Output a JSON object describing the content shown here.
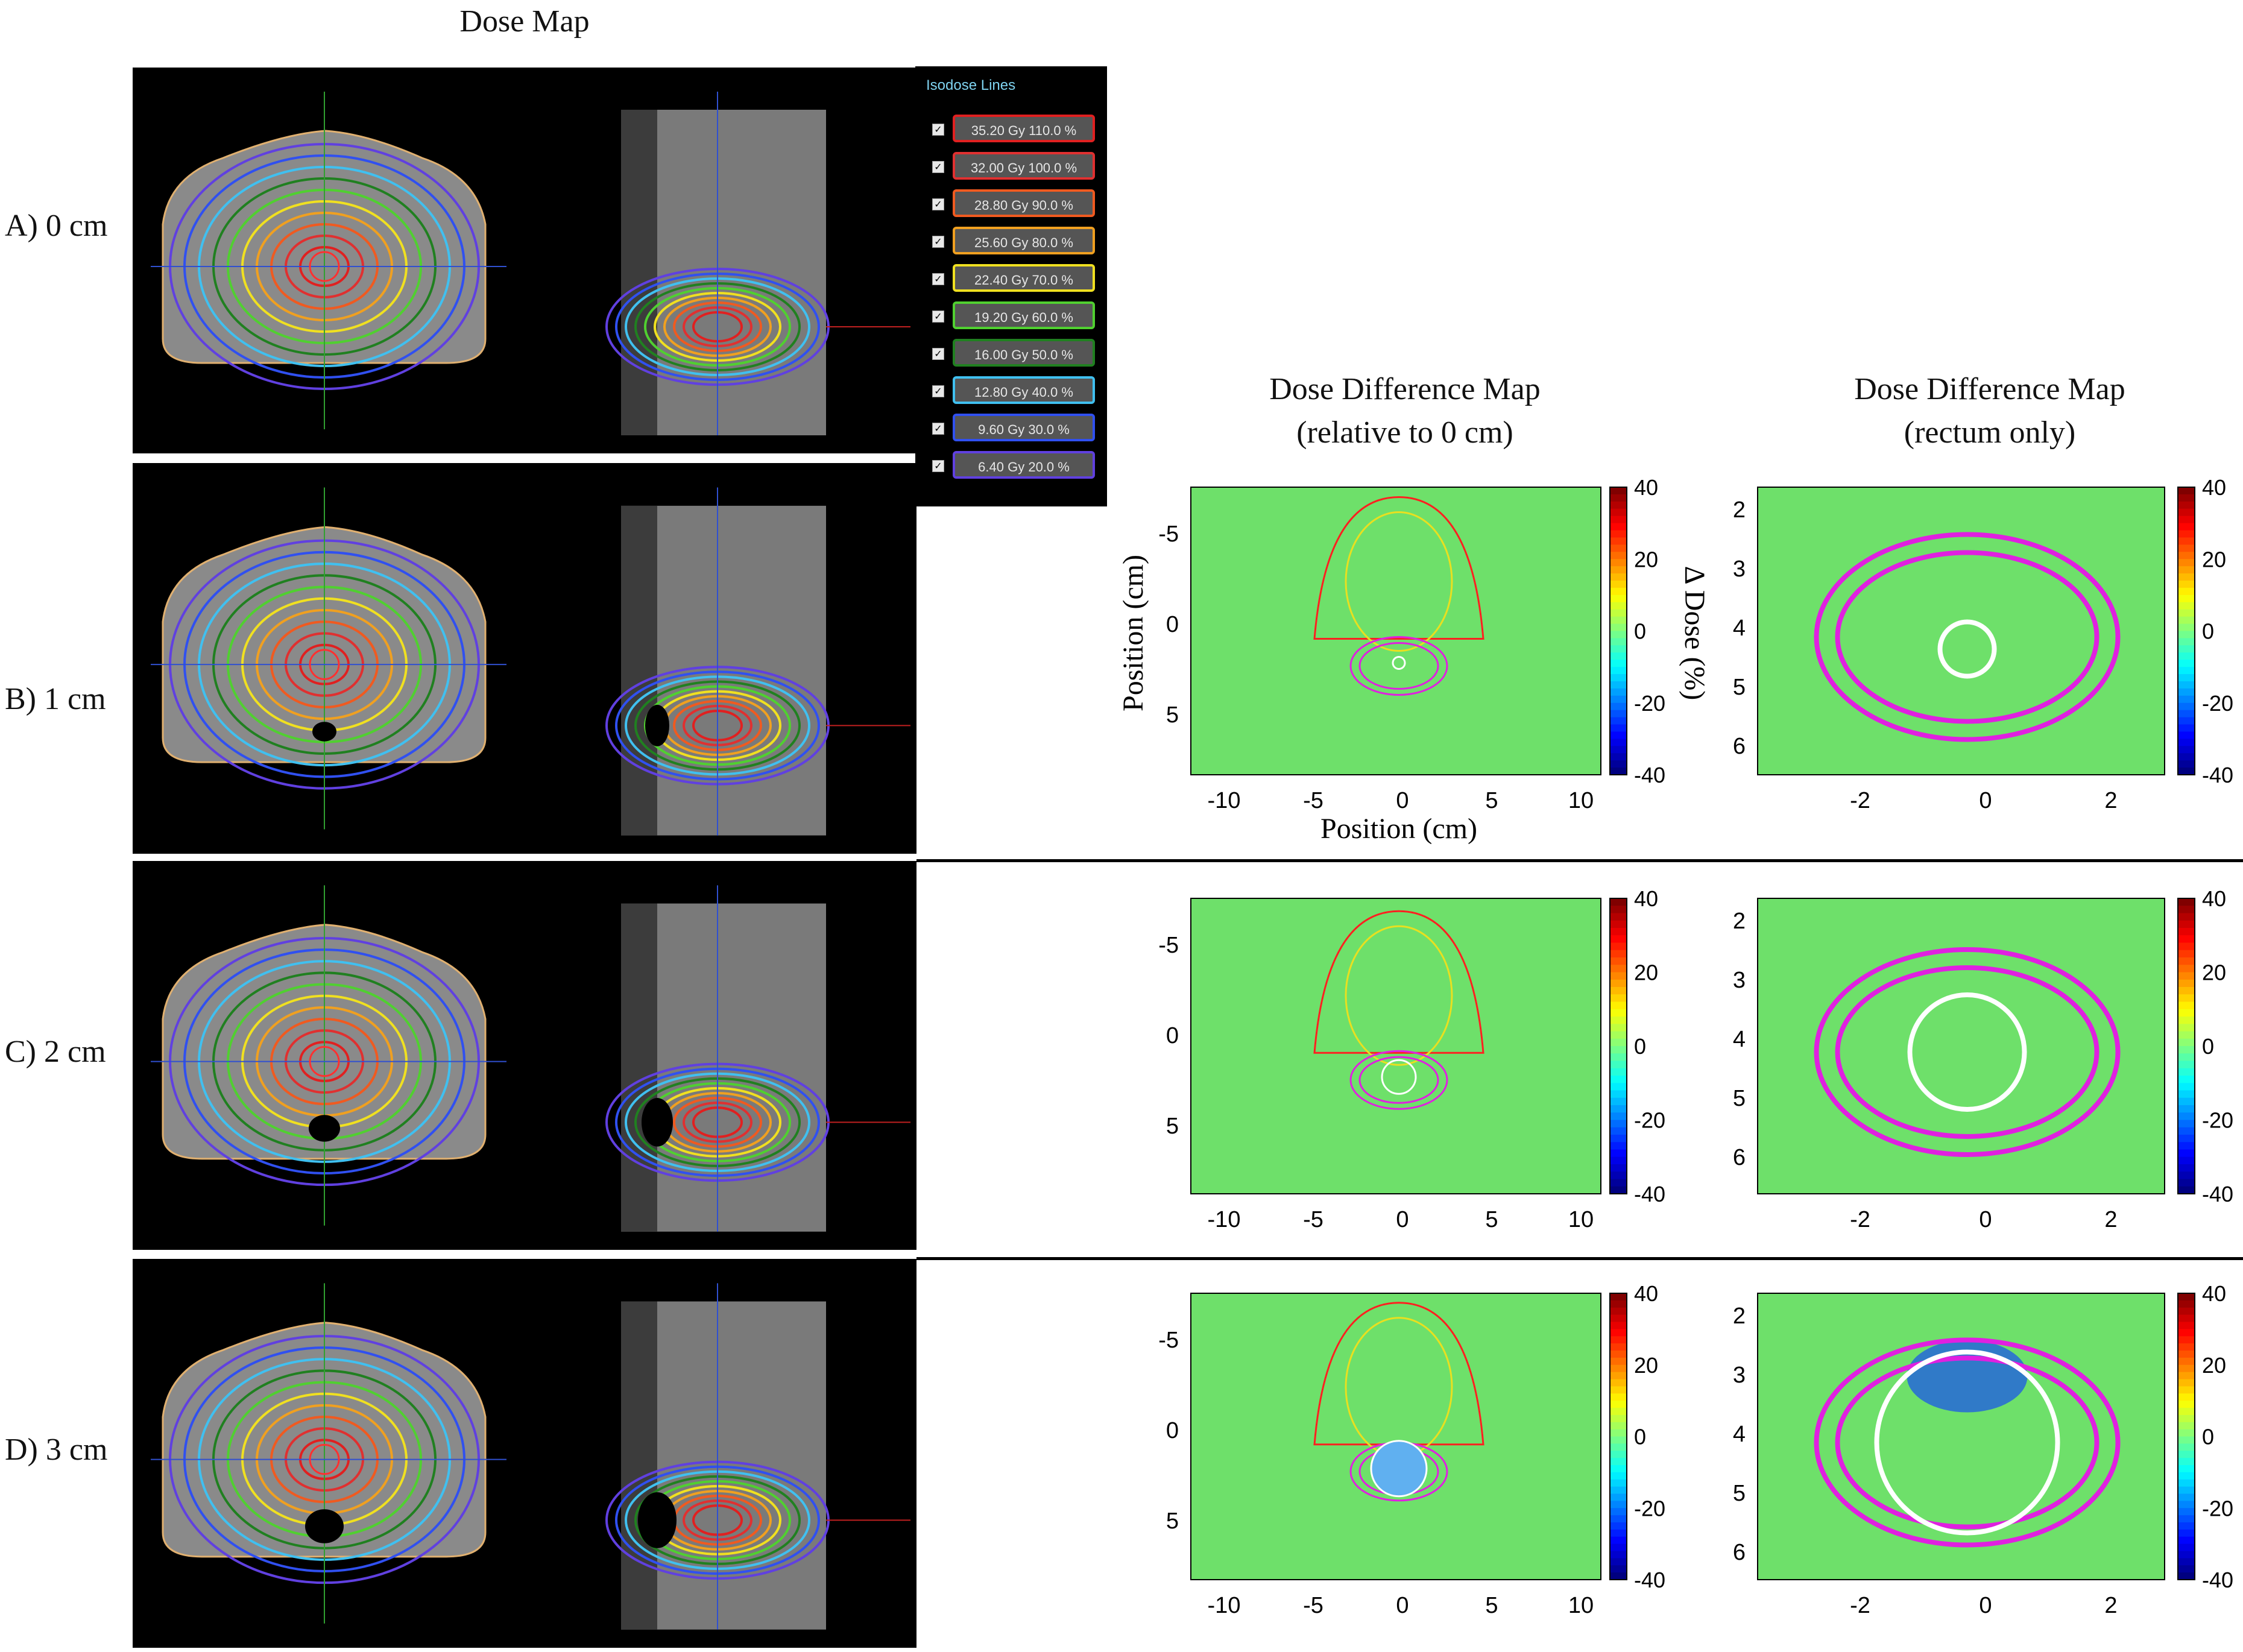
{
  "headers": {
    "dose_map": "Dose Map",
    "diff_rel_line1": "Dose Difference Map",
    "diff_rel_line2": "(relative to 0 cm)",
    "diff_rect_line1": "Dose Difference Map",
    "diff_rect_line2": "(rectum only)"
  },
  "rows": [
    {
      "label": "A) 0 cm"
    },
    {
      "label": "B) 1 cm"
    },
    {
      "label": "C) 2 cm"
    },
    {
      "label": "D) 3 cm"
    }
  ],
  "legend": {
    "title": "Isodose Lines",
    "items": [
      {
        "label": "35.20 Gy  110.0 %",
        "color": "#e02020"
      },
      {
        "label": "32.00 Gy  100.0 %",
        "color": "#e03030"
      },
      {
        "label": "28.80 Gy  90.0 %",
        "color": "#f05a20"
      },
      {
        "label": "25.60 Gy  80.0 %",
        "color": "#f0a020"
      },
      {
        "label": "22.40 Gy  70.0 %",
        "color": "#f0e020"
      },
      {
        "label": "19.20 Gy  60.0 %",
        "color": "#50d030"
      },
      {
        "label": "16.00 Gy  50.0 %",
        "color": "#208020"
      },
      {
        "label": "12.80 Gy  40.0 %",
        "color": "#40c0f0"
      },
      {
        "label": "9.60 Gy  30.0 %",
        "color": "#3050f0"
      },
      {
        "label": "6.40 Gy  20.0 %",
        "color": "#6040e0"
      }
    ]
  },
  "axes": {
    "position_label": "Position (cm)",
    "dose_label": "Δ Dose (%)",
    "colorbar_ticks": [
      "40",
      "20",
      "0",
      "-20",
      "-40"
    ],
    "rel_x_ticks": [
      "-10",
      "-5",
      "0",
      "5",
      "10"
    ],
    "rel_y_ticks": [
      "-5",
      "0",
      "5"
    ],
    "rect_x_ticks": [
      "-2",
      "0",
      "2"
    ],
    "rect_y_ticks": [
      "2",
      "3",
      "4",
      "5",
      "6"
    ]
  },
  "chart_data": [
    {
      "type": "heatmap",
      "title": "Dose Difference Map (relative to 0 cm)",
      "xlabel": "Position (cm)",
      "ylabel": "Position (cm)",
      "xlim": [
        -12,
        12
      ],
      "ylim": [
        8,
        -8
      ],
      "colorbar_label": "Δ Dose (%)",
      "clim": [
        -40,
        40
      ],
      "colormap": "jet",
      "rows": [
        "B) 1 cm",
        "C) 2 cm",
        "D) 3 cm"
      ]
    },
    {
      "type": "heatmap",
      "title": "Dose Difference Map (rectum only)",
      "xlim": [
        -3,
        3
      ],
      "ylim": [
        6.5,
        1.6
      ],
      "colorbar_label": "Δ Dose (%)",
      "clim": [
        -40,
        40
      ],
      "colormap": "jet",
      "rows": [
        "B) 1 cm",
        "C) 2 cm",
        "D) 3 cm"
      ]
    }
  ]
}
